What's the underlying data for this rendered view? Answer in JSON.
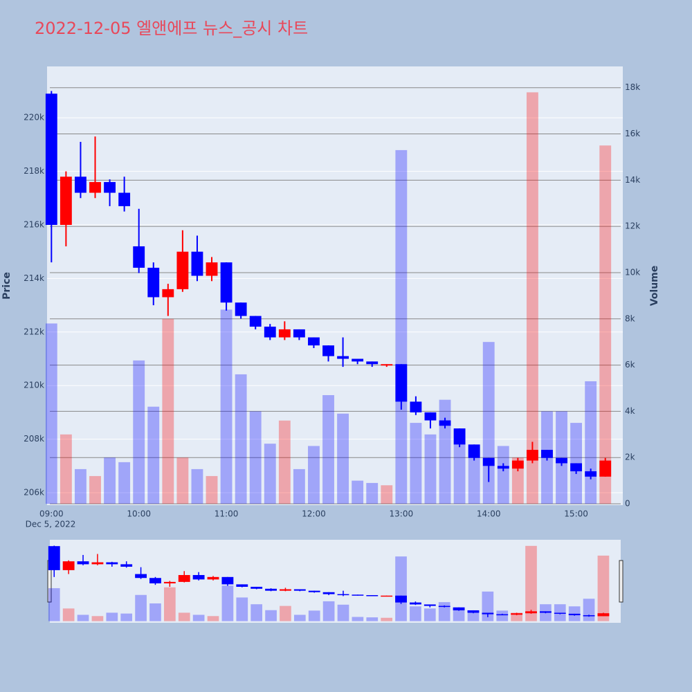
{
  "chart_data": {
    "type": "candlestick",
    "title": "2022-12-05 엘앤에프 뉴스_공시 차트",
    "y_label": "Price",
    "y2_label": "Volume",
    "x_sublabel": "Dec 5, 2022",
    "x": [
      "09:00",
      "09:10",
      "09:20",
      "09:30",
      "09:40",
      "09:50",
      "10:00",
      "10:10",
      "10:20",
      "10:30",
      "10:40",
      "10:50",
      "11:00",
      "11:10",
      "11:20",
      "11:30",
      "11:40",
      "11:50",
      "12:00",
      "12:10",
      "12:20",
      "12:30",
      "12:40",
      "12:50",
      "13:00",
      "13:10",
      "13:20",
      "13:30",
      "13:40",
      "13:50",
      "14:00",
      "14:10",
      "14:20",
      "14:30",
      "14:40",
      "14:50",
      "15:00",
      "15:10",
      "15:20"
    ],
    "open": [
      220900,
      216000,
      217800,
      217200,
      217600,
      217200,
      215200,
      214400,
      213300,
      213600,
      215000,
      214100,
      214600,
      213100,
      212600,
      212200,
      211800,
      212100,
      211800,
      211500,
      211100,
      211000,
      210900,
      210800,
      210800,
      209400,
      209000,
      208700,
      208400,
      207800,
      207300,
      207000,
      206900,
      207200,
      207600,
      207300,
      207100,
      206800,
      206600
    ],
    "high": [
      221000,
      218000,
      219100,
      219300,
      217700,
      217800,
      216600,
      214600,
      213800,
      215800,
      215600,
      214800,
      214600,
      213100,
      212600,
      212300,
      212400,
      212100,
      211800,
      211500,
      211800,
      211000,
      210900,
      210800,
      210800,
      209600,
      209000,
      208800,
      208400,
      207800,
      207300,
      207100,
      207300,
      207900,
      207600,
      207300,
      207100,
      206900,
      207300
    ],
    "low": [
      214600,
      215200,
      217000,
      217000,
      216700,
      216500,
      214200,
      213000,
      212600,
      213500,
      213900,
      213900,
      212800,
      212500,
      212100,
      211700,
      211700,
      211700,
      211400,
      210900,
      210700,
      210800,
      210700,
      210700,
      209100,
      208900,
      208400,
      208400,
      207700,
      207200,
      206400,
      206800,
      206800,
      207100,
      207200,
      207000,
      206700,
      206500,
      206600
    ],
    "close": [
      216000,
      217800,
      217200,
      217600,
      217200,
      216700,
      214400,
      213300,
      213600,
      215000,
      214100,
      214600,
      213100,
      212600,
      212200,
      211800,
      212100,
      211800,
      211500,
      211100,
      211000,
      210900,
      210800,
      210800,
      209400,
      209000,
      208700,
      208500,
      207800,
      207300,
      207000,
      206900,
      207200,
      207600,
      207300,
      207100,
      206800,
      206600,
      207200
    ],
    "volume": [
      7800,
      3000,
      1500,
      1200,
      2000,
      1800,
      6200,
      4200,
      8000,
      2000,
      1500,
      1200,
      8400,
      5600,
      4000,
      2600,
      3600,
      1500,
      2500,
      4700,
      3900,
      1000,
      900,
      800,
      15300,
      3500,
      3000,
      4500,
      3200,
      2500,
      7000,
      2500,
      2000,
      17800,
      4000,
      4000,
      3500,
      5300,
      15500
    ],
    "increasing_color": "#ff0000",
    "decreasing_color": "#0000ff",
    "xlim": [
      "08:57",
      "15:32"
    ],
    "xticks": [
      "09:00",
      "10:00",
      "11:00",
      "12:00",
      "13:00",
      "14:00",
      "15:00"
    ],
    "ylim": [
      205535,
      221917
    ],
    "yticks": [
      {
        "value": 206000,
        "label": "206k"
      },
      {
        "value": 208000,
        "label": "208k"
      },
      {
        "value": 210000,
        "label": "210k"
      },
      {
        "value": 212000,
        "label": "212k"
      },
      {
        "value": 214000,
        "label": "214k"
      },
      {
        "value": 216000,
        "label": "216k"
      },
      {
        "value": 218000,
        "label": "218k"
      },
      {
        "value": 220000,
        "label": "220k"
      }
    ],
    "y2lim": [
      -60,
      18920
    ],
    "y2ticks": [
      0,
      {
        "value": 2000,
        "label": "2k"
      },
      {
        "value": 4000,
        "label": "4k"
      },
      {
        "value": 6000,
        "label": "6k"
      },
      {
        "value": 8000,
        "label": "8k"
      },
      {
        "value": 10000,
        "label": "10k"
      },
      {
        "value": 12000,
        "label": "12k"
      },
      {
        "value": 14000,
        "label": "14k"
      },
      {
        "value": 16000,
        "label": "16k"
      },
      {
        "value": 18000,
        "label": "18k"
      }
    ],
    "grid": true,
    "range_slider": true
  }
}
